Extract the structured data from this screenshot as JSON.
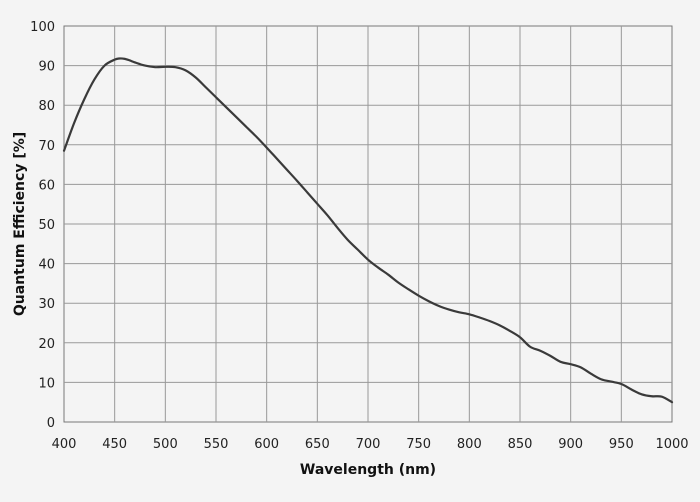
{
  "chart_data": {
    "type": "line",
    "title": "",
    "xlabel": "Wavelength (nm)",
    "ylabel": "Quantum Efficiency [%]",
    "xlim": [
      400,
      1000
    ],
    "ylim": [
      0,
      100
    ],
    "xticks": [
      400,
      450,
      500,
      550,
      600,
      650,
      700,
      750,
      800,
      850,
      900,
      950,
      1000
    ],
    "yticks": [
      0,
      10,
      20,
      30,
      40,
      50,
      60,
      70,
      80,
      90,
      100
    ],
    "grid": true,
    "legend": "none",
    "line_color": "#3a3a3a",
    "series": [
      {
        "x": [
          400,
          410,
          420,
          430,
          440,
          450,
          455,
          460,
          465,
          470,
          480,
          490,
          500,
          510,
          520,
          530,
          540,
          550,
          560,
          570,
          580,
          590,
          600,
          610,
          620,
          630,
          640,
          650,
          660,
          670,
          680,
          690,
          700,
          710,
          720,
          730,
          740,
          750,
          760,
          770,
          780,
          790,
          800,
          810,
          820,
          830,
          840,
          850,
          860,
          870,
          880,
          890,
          900,
          910,
          920,
          930,
          940,
          950,
          960,
          970,
          980,
          990,
          1000
        ],
        "y": [
          68.5,
          75.5,
          81.5,
          86.5,
          90.0,
          91.5,
          91.8,
          91.7,
          91.3,
          90.8,
          90.0,
          89.6,
          89.7,
          89.6,
          88.8,
          87.0,
          84.5,
          82.0,
          79.5,
          77.0,
          74.5,
          72.0,
          69.3,
          66.5,
          63.7,
          60.9,
          58.0,
          55.1,
          52.2,
          49.0,
          46.0,
          43.5,
          41.0,
          39.0,
          37.2,
          35.2,
          33.5,
          31.9,
          30.5,
          29.3,
          28.4,
          27.7,
          27.2,
          26.4,
          25.5,
          24.4,
          23.0,
          21.4,
          19.0,
          18.0,
          16.7,
          15.2,
          14.6,
          13.8,
          12.2,
          10.8,
          10.2,
          9.6,
          8.2,
          7.0,
          6.5,
          6.4,
          5.0
        ]
      }
    ]
  }
}
